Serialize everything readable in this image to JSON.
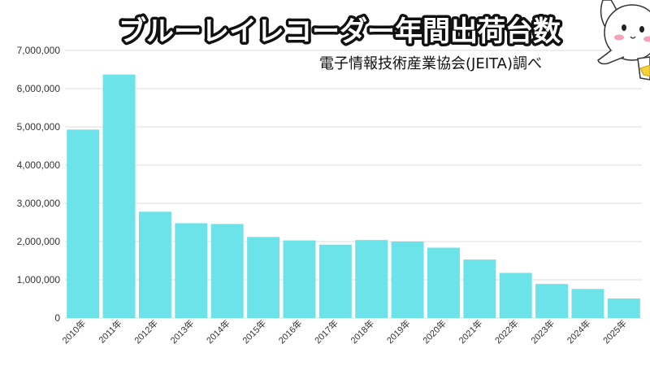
{
  "colors": {
    "bar": "#6be3e8",
    "grid": "#dddddd",
    "title_fill": "#ffffff",
    "title_stroke": "#111111"
  },
  "mascot": {
    "icon": "rabbit-mascot-icon"
  },
  "chart_data": {
    "type": "bar",
    "title": "ブルーレイレコーダー年間出荷台数",
    "subtitle": "電子情報技術産業協会(JEITA)調べ",
    "xlabel": "",
    "ylabel": "",
    "ylim": [
      0,
      7000000
    ],
    "grid": true,
    "yticks": [
      0,
      1000000,
      2000000,
      3000000,
      4000000,
      5000000,
      6000000,
      7000000
    ],
    "ytick_labels": [
      "0",
      "1,000,000",
      "2,000,000",
      "3,000,000",
      "4,000,000",
      "5,000,000",
      "6,000,000",
      "7,000,000"
    ],
    "categories": [
      "2010年",
      "2011年",
      "2012年",
      "2013年",
      "2014年",
      "2015年",
      "2016年",
      "2017年",
      "2018年",
      "2019年",
      "2020年",
      "2021年",
      "2022年",
      "2023年",
      "2024年",
      "2025年"
    ],
    "values": [
      4930000,
      6370000,
      2780000,
      2480000,
      2460000,
      2120000,
      2030000,
      1920000,
      2040000,
      2000000,
      1840000,
      1530000,
      1180000,
      890000,
      760000,
      510000
    ]
  }
}
